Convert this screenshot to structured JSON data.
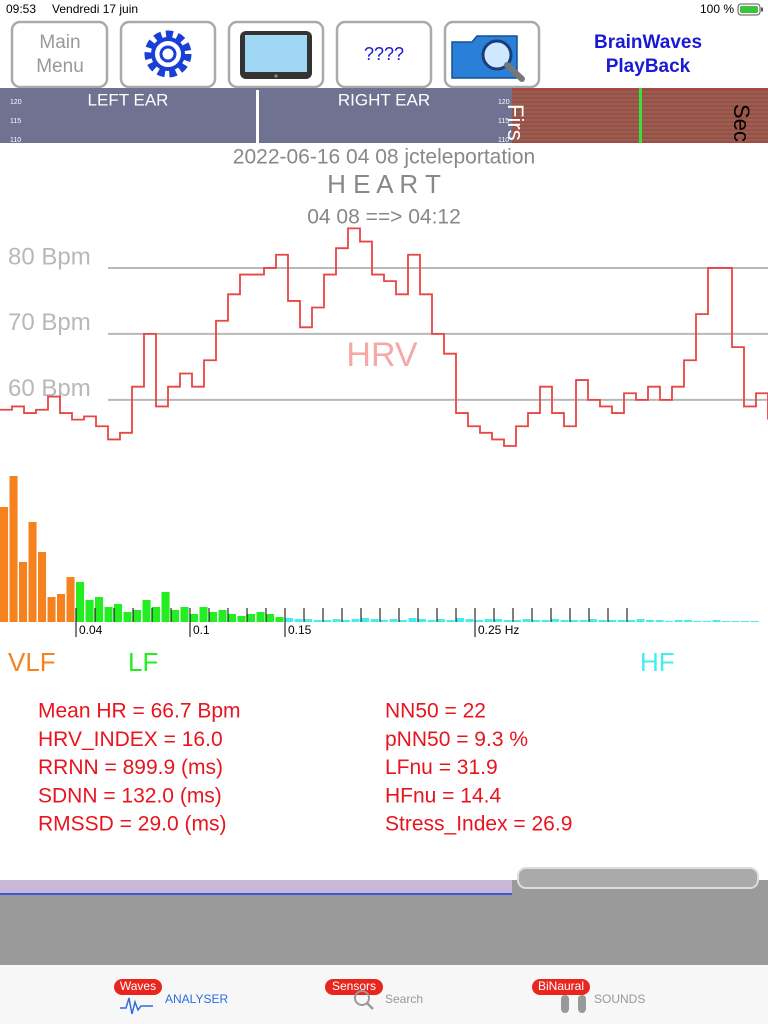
{
  "status_bar": {
    "time": "09:53",
    "date": "Vendredi 17 juin",
    "battery": "100 %"
  },
  "toolbar": {
    "main_menu": [
      "Main",
      "Menu"
    ],
    "help": "????",
    "app_title": [
      "BrainWaves",
      "PlayBack"
    ]
  },
  "ear_strip": {
    "left": "LEFT EAR",
    "right": "RIGHT EAR",
    "scale_left": [
      120,
      115,
      110
    ],
    "scale_right": [
      120,
      115,
      110
    ],
    "first": "Firs",
    "second": "Sec"
  },
  "heart_panel": {
    "session": "2022-06-16 04 08 jcteleportation",
    "title": "H E A R T",
    "time_range": "04 08 ==> 04:12",
    "hrv_chart": {
      "type": "line",
      "label": "HRV",
      "color": "#e84545",
      "ylim": [
        48,
        90
      ],
      "yticks": [
        {
          "value": 80,
          "label": "80 Bpm"
        },
        {
          "value": 70,
          "label": "70 Bpm"
        },
        {
          "value": 60,
          "label": "60 Bpm"
        }
      ],
      "values": [
        58.5,
        59,
        58,
        58.5,
        60.5,
        58,
        57,
        57.5,
        56,
        54,
        55,
        62,
        70,
        59,
        62,
        64,
        62,
        66,
        72,
        76,
        79,
        79,
        80,
        82,
        75,
        71,
        74,
        79,
        83,
        86,
        84,
        79,
        78,
        76,
        82,
        76,
        70,
        67,
        58,
        56,
        55,
        54,
        53,
        56,
        58,
        62,
        58,
        56,
        63,
        60,
        59,
        58,
        61,
        60,
        62,
        60,
        62,
        66,
        73,
        80,
        80,
        68,
        59,
        61,
        57
      ]
    },
    "spectrum": {
      "type": "bar",
      "xlim": [
        0,
        0.4
      ],
      "ylim": [
        0,
        150
      ],
      "xticks": [
        0.04,
        0.1,
        0.15,
        {
          "value": 0.25,
          "label": "0.25 Hz"
        }
      ],
      "minor_xticks": [
        0.05,
        0.06,
        0.07,
        0.08,
        0.09,
        0.11,
        0.12,
        0.13,
        0.14,
        0.16,
        0.17,
        0.18,
        0.19,
        0.2,
        0.21,
        0.22,
        0.23,
        0.24,
        0.26,
        0.27,
        0.28,
        0.29,
        0.3,
        0.31,
        0.32,
        0.33
      ],
      "bar_width": 0.005,
      "series": [
        {
          "name": "VLF",
          "color": "#f5821f",
          "x": [
            0,
            0.005,
            0.01,
            0.015,
            0.02,
            0.025,
            0.03,
            0.035
          ],
          "values": [
            115,
            146,
            60,
            100,
            70,
            25,
            28,
            45
          ]
        },
        {
          "name": "LF",
          "color": "#22ee22",
          "x": [
            0.04,
            0.045,
            0.05,
            0.055,
            0.06,
            0.065,
            0.07,
            0.075,
            0.08,
            0.085,
            0.09,
            0.095,
            0.1,
            0.105,
            0.11,
            0.115,
            0.12,
            0.125,
            0.13,
            0.135,
            0.14,
            0.145
          ],
          "values": [
            40,
            22,
            25,
            15,
            18,
            10,
            12,
            22,
            15,
            30,
            12,
            15,
            8,
            15,
            10,
            12,
            8,
            6,
            8,
            10,
            8,
            5
          ]
        },
        {
          "name": "HF",
          "color": "#44eeee",
          "x": [
            0.15,
            0.155,
            0.16,
            0.165,
            0.17,
            0.175,
            0.18,
            0.185,
            0.19,
            0.195,
            0.2,
            0.205,
            0.21,
            0.215,
            0.22,
            0.225,
            0.23,
            0.235,
            0.24,
            0.245,
            0.25,
            0.255,
            0.26,
            0.265,
            0.27,
            0.275,
            0.28,
            0.285,
            0.29,
            0.295,
            0.3,
            0.305,
            0.31,
            0.315,
            0.32,
            0.325,
            0.33,
            0.335,
            0.34,
            0.345,
            0.35,
            0.355,
            0.36,
            0.365,
            0.37,
            0.375,
            0.38,
            0.385,
            0.39,
            0.395
          ],
          "values": [
            4,
            3,
            3,
            2,
            2,
            3,
            2,
            3,
            4,
            3,
            2,
            3,
            2,
            4,
            3,
            2,
            3,
            2,
            4,
            3,
            2,
            3,
            3,
            2,
            2,
            3,
            2,
            2,
            3,
            2,
            2,
            2,
            3,
            2,
            2,
            2,
            2,
            3,
            2,
            2,
            1,
            2,
            2,
            1,
            1,
            2,
            1,
            1,
            1,
            1
          ]
        }
      ]
    },
    "stats": {
      "left": [
        "Mean HR = 66.7 Bpm",
        "HRV_INDEX = 16.0",
        "RRNN = 899.9 (ms)",
        "SDNN = 132.0 (ms)",
        "RMSSD = 29.0 (ms)"
      ],
      "right": [
        "NN50 = 22",
        "pNN50 = 9.3 %",
        "LFnu = 31.9",
        "HFnu = 14.4",
        "Stress_Index = 26.9"
      ]
    }
  },
  "tab_bar": {
    "waves": "Waves",
    "analyser": "ANALYSER",
    "sensors": "Sensors",
    "search": "Search",
    "binaural": "BiNaural",
    "sounds": "SOUNDS"
  }
}
